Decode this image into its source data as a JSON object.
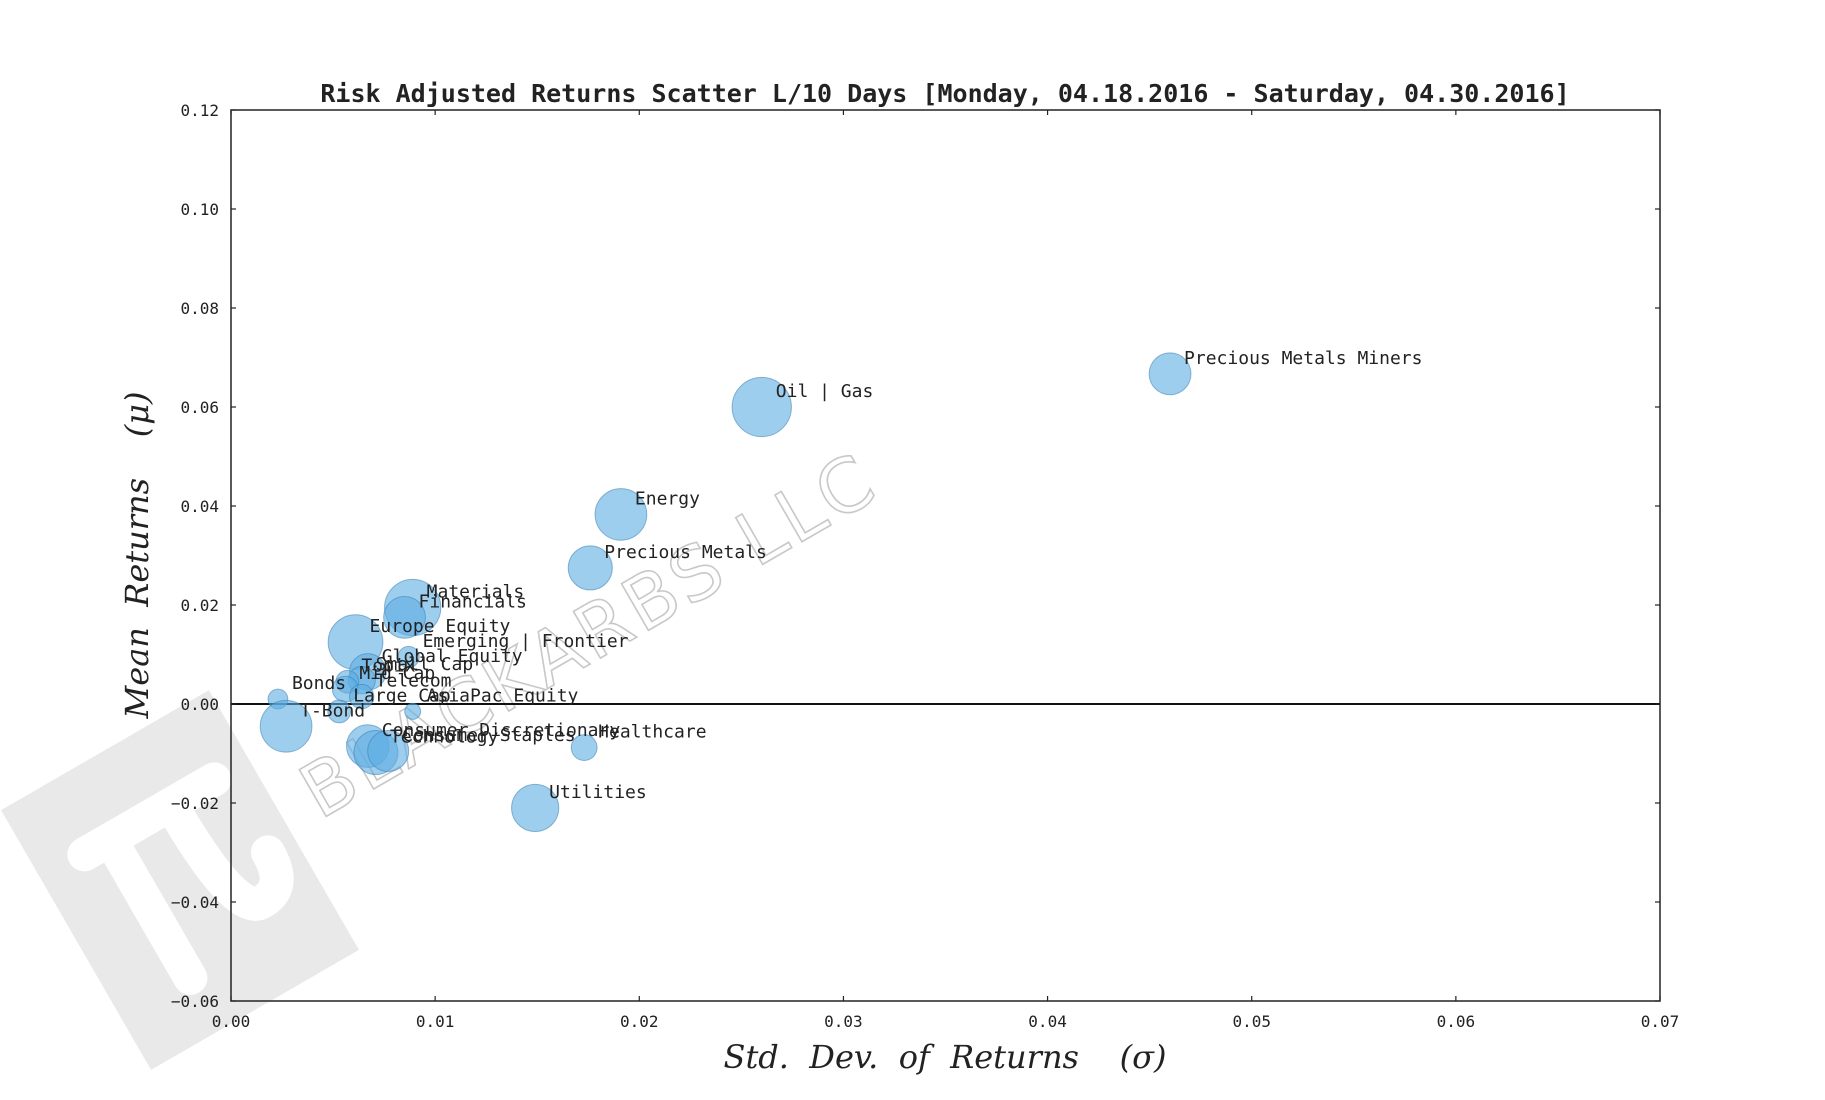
{
  "watermark": {
    "text": "BLACKARBS LLC"
  },
  "chart_data": {
    "type": "scatter",
    "title": "Risk Adjusted Returns Scatter L/10 Days [Monday, 04.18.2016 - Saturday, 04.30.2016]",
    "xlabel": "Std.  Dev.  of  Returns    (σ)",
    "ylabel": "Mean  Returns    (μ)",
    "xlim": [
      0.0,
      0.07
    ],
    "ylim": [
      -0.06,
      0.12
    ],
    "xticks": [
      0.0,
      0.01,
      0.02,
      0.03,
      0.04,
      0.05,
      0.06,
      0.07
    ],
    "xtick_labels": [
      "0.00",
      "0.01",
      "0.02",
      "0.03",
      "0.04",
      "0.05",
      "0.06",
      "0.07"
    ],
    "yticks": [
      -0.06,
      -0.04,
      -0.02,
      0.0,
      0.02,
      0.04,
      0.06,
      0.08,
      0.1,
      0.12
    ],
    "ytick_labels": [
      "−0.06",
      "−0.04",
      "−0.02",
      "0.00",
      "0.02",
      "0.04",
      "0.06",
      "0.08",
      "0.10",
      "0.12"
    ],
    "grid": false,
    "zero_line": 0.0,
    "point_color": "#5dade2",
    "points": [
      {
        "name": "Precious Metals Miners",
        "x": 0.046,
        "y": 0.0667,
        "size": 0.55
      },
      {
        "name": "Oil | Gas",
        "x": 0.026,
        "y": 0.06,
        "size": 0.78
      },
      {
        "name": "Energy",
        "x": 0.0191,
        "y": 0.0383,
        "size": 0.68
      },
      {
        "name": "Precious Metals",
        "x": 0.0176,
        "y": 0.0275,
        "size": 0.58
      },
      {
        "name": "Materials",
        "x": 0.0089,
        "y": 0.0195,
        "size": 0.74
      },
      {
        "name": "Financials",
        "x": 0.0085,
        "y": 0.0175,
        "size": 0.55
      },
      {
        "name": "Europe Equity",
        "x": 0.0061,
        "y": 0.0125,
        "size": 0.72
      },
      {
        "name": "Emerging | Frontier",
        "x": 0.0087,
        "y": 0.0095,
        "size": 0.28
      },
      {
        "name": "Global Equity",
        "x": 0.0067,
        "y": 0.0065,
        "size": 0.48
      },
      {
        "name": "Small Cap",
        "x": 0.0064,
        "y": 0.0048,
        "size": 0.36
      },
      {
        "name": "Topix",
        "x": 0.0057,
        "y": 0.0045,
        "size": 0.3
      },
      {
        "name": "Mid Cap",
        "x": 0.0056,
        "y": 0.003,
        "size": 0.34
      },
      {
        "name": "Telecom",
        "x": 0.0064,
        "y": 0.0015,
        "size": 0.32
      },
      {
        "name": "Bonds",
        "x": 0.0023,
        "y": 0.001,
        "size": 0.26
      },
      {
        "name": "Large Cap",
        "x": 0.0053,
        "y": -0.0015,
        "size": 0.3
      },
      {
        "name": "AsiaPac Equity",
        "x": 0.0089,
        "y": -0.0015,
        "size": 0.14
      },
      {
        "name": "T-Bond",
        "x": 0.0027,
        "y": -0.0045,
        "size": 0.68
      },
      {
        "name": "Consumer Discretionary",
        "x": 0.0067,
        "y": -0.0085,
        "size": 0.56
      },
      {
        "name": "Technology",
        "x": 0.0071,
        "y": -0.0098,
        "size": 0.58
      },
      {
        "name": "Consumer Staples",
        "x": 0.0077,
        "y": -0.0095,
        "size": 0.54
      },
      {
        "name": "Healthcare",
        "x": 0.0173,
        "y": -0.0088,
        "size": 0.34
      },
      {
        "name": "Utilities",
        "x": 0.0149,
        "y": -0.021,
        "size": 0.62
      }
    ]
  }
}
